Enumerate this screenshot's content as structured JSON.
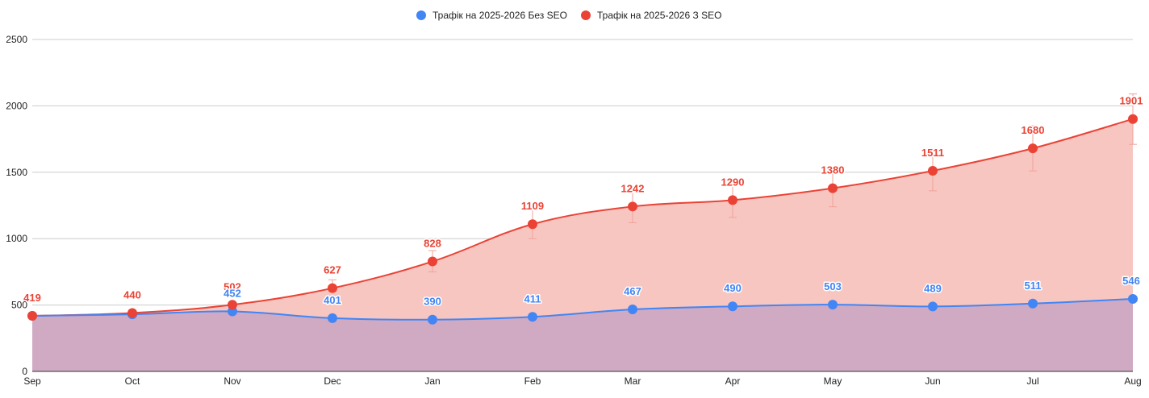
{
  "chart_data": {
    "type": "area",
    "categories": [
      "Sep",
      "Oct",
      "Nov",
      "Dec",
      "Jan",
      "Feb",
      "Mar",
      "Apr",
      "May",
      "Jun",
      "Jul",
      "Aug"
    ],
    "series": [
      {
        "name": "Трафік на 2025-2026 Без SEO",
        "values": [
          419,
          430,
          452,
          401,
          390,
          411,
          467,
          490,
          503,
          489,
          511,
          546
        ],
        "labels": [
          "",
          "",
          "452",
          "401",
          "390",
          "411",
          "467",
          "490",
          "503",
          "489",
          "511",
          "546"
        ],
        "color": "#4285f4",
        "fill": "#cfaac2"
      },
      {
        "name": "Трафік на 2025-2026 З SEO",
        "values": [
          419,
          440,
          502,
          627,
          828,
          1109,
          1242,
          1290,
          1380,
          1511,
          1680,
          1901
        ],
        "labels": [
          "419",
          "440",
          "502",
          "627",
          "828",
          "1109",
          "1242",
          "1290",
          "1380",
          "1511",
          "1680",
          "1901"
        ],
        "error_low": [
          400,
          420,
          480,
          600,
          750,
          1000,
          1120,
          1160,
          1240,
          1360,
          1510,
          1710
        ],
        "error_high": [
          440,
          460,
          520,
          690,
          910,
          1220,
          1360,
          1420,
          1520,
          1660,
          1850,
          2090
        ],
        "color": "#ea4335",
        "fill": "#f7c6c1"
      }
    ],
    "y_ticks": [
      "0",
      "500",
      "1000",
      "1500",
      "2000",
      "2500"
    ],
    "ylim": [
      0,
      2500
    ],
    "legend_position": "top-center",
    "grid": true
  }
}
